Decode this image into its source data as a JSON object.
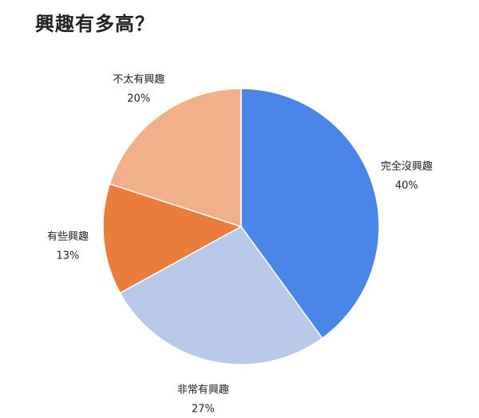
{
  "chart_data": {
    "type": "pie",
    "title": "興趣有多高？",
    "categories": [
      "完全沒興趣",
      "非常有興趣",
      "有些興趣",
      "不太有興趣"
    ],
    "values": [
      40,
      27,
      13,
      20
    ],
    "value_labels": [
      "40%",
      "27%",
      "13%",
      "20%"
    ],
    "colors": [
      "#4a86e8",
      "#b7c8e8",
      "#eb7d3c",
      "#f2b08a"
    ],
    "start": "top",
    "direction": "clockwise",
    "legend": "none; outside labels"
  }
}
